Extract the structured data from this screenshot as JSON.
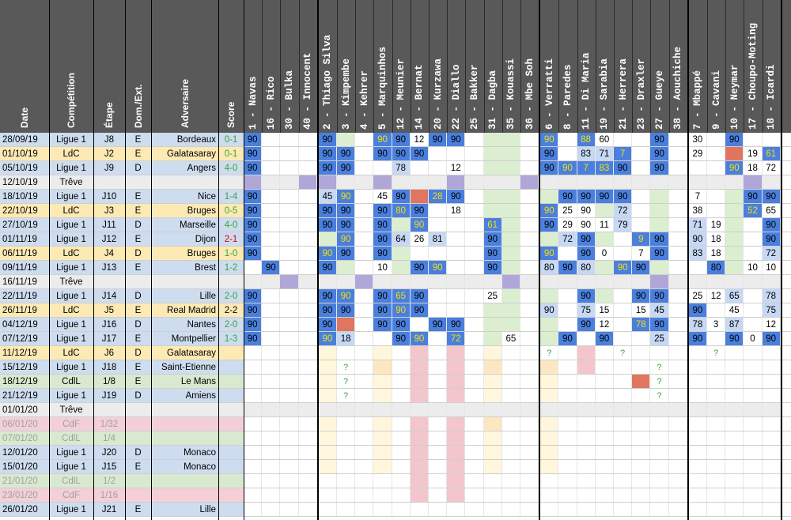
{
  "headers": {
    "date": "Date",
    "competition": "Compétition",
    "etape": "Étape",
    "domext": "Dom./Ext.",
    "adversaire": "Adversaire",
    "score": "Score"
  },
  "players": [
    "1 - Navas",
    "16 - Rico",
    "30 - Bulka",
    "40 - Innocent",
    "2 - Thiago Silva",
    "3 - Kimpembe",
    "4 - Kehrer",
    "5 - Marquinhos",
    "12 - Meunier",
    "14 - Bernat",
    "20 - Kurzawa",
    "22 - Diallo",
    "25 - Bakker",
    "31 - Dagba",
    "35 - Kouassi",
    "36 - Mbe Soh",
    "6 - Verratti",
    "8 - Paredes",
    "11 - Di Maria",
    "19 - Sarabia",
    "21 - Herrera",
    "23 - Draxler",
    "27 - Gueye",
    "38 - Aouchiche",
    "7 - Mbappé",
    "9 - Cavani",
    "10 - Neymar",
    "17 - Choupo-Moting",
    "18 - Icardi"
  ],
  "matches": [
    {
      "date": "28/09/19",
      "comp": "Ligue 1",
      "etape": "J8",
      "de": "E",
      "adv": "Bordeaux",
      "score": "0-1",
      "res": "w"
    },
    {
      "date": "01/10/19",
      "comp": "LdC",
      "etape": "J2",
      "de": "E",
      "adv": "Galatasaray",
      "score": "0-1",
      "res": "w"
    },
    {
      "date": "05/10/19",
      "comp": "Ligue 1",
      "etape": "J9",
      "de": "D",
      "adv": "Angers",
      "score": "4-0",
      "res": "w"
    },
    {
      "date": "12/10/19",
      "comp": "Trêve",
      "etape": "",
      "de": "",
      "adv": "",
      "score": "",
      "res": ""
    },
    {
      "date": "18/10/19",
      "comp": "Ligue 1",
      "etape": "J10",
      "de": "E",
      "adv": "Nice",
      "score": "1-4",
      "res": "w"
    },
    {
      "date": "22/10/19",
      "comp": "LdC",
      "etape": "J3",
      "de": "E",
      "adv": "Bruges",
      "score": "0-5",
      "res": "w"
    },
    {
      "date": "27/10/19",
      "comp": "Ligue 1",
      "etape": "J11",
      "de": "D",
      "adv": "Marseille",
      "score": "4-0",
      "res": "w"
    },
    {
      "date": "01/11/19",
      "comp": "Ligue 1",
      "etape": "J12",
      "de": "E",
      "adv": "Dijon",
      "score": "2-1",
      "res": "l"
    },
    {
      "date": "06/11/19",
      "comp": "LdC",
      "etape": "J4",
      "de": "D",
      "adv": "Bruges",
      "score": "1-0",
      "res": "w"
    },
    {
      "date": "09/11/19",
      "comp": "Ligue 1",
      "etape": "J13",
      "de": "E",
      "adv": "Brest",
      "score": "1-2",
      "res": "w"
    },
    {
      "date": "16/11/19",
      "comp": "Trêve",
      "etape": "",
      "de": "",
      "adv": "",
      "score": "",
      "res": ""
    },
    {
      "date": "22/11/19",
      "comp": "Ligue 1",
      "etape": "J14",
      "de": "D",
      "adv": "Lille",
      "score": "2-0",
      "res": "w"
    },
    {
      "date": "26/11/19",
      "comp": "LdC",
      "etape": "J5",
      "de": "E",
      "adv": "Real Madrid",
      "score": "2-2",
      "res": "d"
    },
    {
      "date": "04/12/19",
      "comp": "Ligue 1",
      "etape": "J16",
      "de": "D",
      "adv": "Nantes",
      "score": "2-0",
      "res": "w"
    },
    {
      "date": "07/12/19",
      "comp": "Ligue 1",
      "etape": "J17",
      "de": "E",
      "adv": "Montpellier",
      "score": "1-3",
      "res": "w"
    },
    {
      "date": "11/12/19",
      "comp": "LdC",
      "etape": "J6",
      "de": "D",
      "adv": "Galatasaray",
      "score": "",
      "res": ""
    },
    {
      "date": "15/12/19",
      "comp": "Ligue 1",
      "etape": "J18",
      "de": "E",
      "adv": "Saint-Etienne",
      "score": "",
      "res": ""
    },
    {
      "date": "18/12/19",
      "comp": "CdlL",
      "etape": "1/8",
      "de": "E",
      "adv": "Le Mans",
      "score": "",
      "res": ""
    },
    {
      "date": "21/12/19",
      "comp": "Ligue 1",
      "etape": "J19",
      "de": "D",
      "adv": "Amiens",
      "score": "",
      "res": ""
    },
    {
      "date": "01/01/20",
      "comp": "Trêve",
      "etape": "",
      "de": "",
      "adv": "",
      "score": "",
      "res": ""
    },
    {
      "date": "06/01/20",
      "comp": "CdF",
      "etape": "1/32",
      "de": "",
      "adv": "",
      "score": "",
      "res": "",
      "dim": true
    },
    {
      "date": "07/01/20",
      "comp": "CdlL",
      "etape": "1/4",
      "de": "",
      "adv": "",
      "score": "",
      "res": "",
      "dim": true
    },
    {
      "date": "12/01/20",
      "comp": "Ligue 1",
      "etape": "J20",
      "de": "D",
      "adv": "Monaco",
      "score": "",
      "res": ""
    },
    {
      "date": "15/01/20",
      "comp": "Ligue 1",
      "etape": "J15",
      "de": "E",
      "adv": "Monaco",
      "score": "",
      "res": ""
    },
    {
      "date": "21/01/20",
      "comp": "CdlL",
      "etape": "1/2",
      "de": "",
      "adv": "",
      "score": "",
      "res": "",
      "dim": true
    },
    {
      "date": "23/01/20",
      "comp": "CdF",
      "etape": "1/16",
      "de": "",
      "adv": "",
      "score": "",
      "res": "",
      "dim": true
    },
    {
      "date": "26/01/20",
      "comp": "Ligue 1",
      "etape": "J21",
      "de": "E",
      "adv": "Lille",
      "score": "",
      "res": ""
    }
  ],
  "cells": [
    [
      "B90",
      "",
      "",
      "",
      "B90",
      "",
      "",
      "Y90",
      "B90",
      "W12",
      "B90",
      "B90",
      "",
      "",
      "",
      "",
      "Y90",
      "",
      "Y88",
      "W60",
      "",
      "",
      "B90",
      "",
      "W30",
      "",
      "B90",
      "",
      ""
    ],
    [
      "B90",
      "",
      "",
      "",
      "B90",
      "B90",
      "",
      "B90",
      "B90",
      "B90",
      "",
      "",
      "",
      "",
      "",
      "",
      "B90",
      "",
      "L83",
      "L71",
      "Y7",
      "",
      "B90",
      "",
      "W29",
      "",
      "R",
      "W19",
      "Y61"
    ],
    [
      "B90",
      "",
      "",
      "",
      "B90",
      "B90",
      "",
      "",
      "L78",
      "",
      "",
      "W12",
      "",
      "",
      "",
      "",
      "B90",
      "Y90",
      "Y7",
      "Y83",
      "B90",
      "",
      "B90",
      "",
      "",
      "",
      "Y90",
      "W18",
      "W72"
    ],
    [
      "P",
      "",
      "",
      "P",
      "P",
      "",
      "",
      "P",
      "",
      "",
      "",
      "P",
      "",
      "",
      "",
      "P",
      "",
      "",
      "",
      "",
      "",
      "",
      "",
      "",
      "",
      "",
      "",
      "P",
      ""
    ],
    [
      "B90",
      "",
      "",
      "",
      "L45",
      "Y90",
      "",
      "W45",
      "B90",
      "R",
      "Y28",
      "B90",
      "",
      "",
      "",
      "",
      "",
      "B90",
      "B90",
      "B90",
      "B90",
      "",
      "",
      "",
      "W7",
      "",
      "",
      "B90",
      "B90"
    ],
    [
      "B90",
      "",
      "",
      "",
      "B90",
      "B90",
      "",
      "B90",
      "Y80",
      "B90",
      "",
      "W18",
      "",
      "",
      "",
      "",
      "Y90",
      "W25",
      "W90",
      "",
      "L72",
      "",
      "",
      "",
      "W38",
      "",
      "",
      "Y52",
      "W65"
    ],
    [
      "B90",
      "",
      "",
      "",
      "B90",
      "B90",
      "",
      "B90",
      "",
      "Y90",
      "",
      "",
      "",
      "Y61",
      "",
      "",
      "B90",
      "W29",
      "W90",
      "W11",
      "L79",
      "",
      "",
      "",
      "L71",
      "W19",
      "",
      "",
      "B90"
    ],
    [
      "B90",
      "",
      "",
      "",
      "",
      "Y90",
      "",
      "B90",
      "L64",
      "W26",
      "L81",
      "",
      "",
      "B90",
      "",
      "",
      "",
      "L72",
      "B90",
      "",
      "",
      "Y9",
      "B90",
      "",
      "L90",
      "W18",
      "",
      "",
      "B90"
    ],
    [
      "B90",
      "",
      "",
      "",
      "Y90",
      "B90",
      "",
      "B90",
      "",
      "",
      "",
      "",
      "",
      "B90",
      "",
      "",
      "Y90",
      "",
      "B90",
      "W0",
      "",
      "W7",
      "B90",
      "",
      "L83",
      "W18",
      "",
      "",
      "L72"
    ],
    [
      "",
      "B90",
      "",
      "",
      "B90",
      "",
      "",
      "W10",
      "",
      "B90",
      "Y90",
      "",
      "",
      "B90",
      "",
      "",
      "L80",
      "B90",
      "L80",
      "",
      "Y90",
      "B90",
      "",
      "",
      "",
      "B80",
      "",
      "W10",
      "W10"
    ],
    [
      "",
      "",
      "P",
      "",
      "",
      "",
      "P",
      "",
      "",
      "",
      "",
      "",
      "",
      "",
      "P",
      "",
      "",
      "",
      "",
      "",
      "",
      "",
      "P",
      "",
      "",
      "",
      "",
      "",
      ""
    ],
    [
      "B90",
      "",
      "",
      "",
      "B90",
      "Y90",
      "",
      "B90",
      "Y65",
      "B90",
      "",
      "",
      "",
      "W25",
      "",
      "",
      "",
      "",
      "B90",
      "",
      "",
      "B90",
      "B90",
      "",
      "W25",
      "W12",
      "L65",
      "",
      "L78"
    ],
    [
      "B90",
      "",
      "",
      "",
      "B90",
      "B90",
      "",
      "B90",
      "Y90",
      "B90",
      "",
      "",
      "",
      "",
      "",
      "",
      "L90",
      "",
      "L75",
      "W15",
      "",
      "W15",
      "L45",
      "",
      "B90",
      "",
      "W45",
      "",
      "L75"
    ],
    [
      "B90",
      "",
      "",
      "",
      "B90",
      "R",
      "",
      "B90",
      "B90",
      "",
      "B90",
      "B90",
      "",
      "",
      "",
      "",
      "",
      "",
      "B90",
      "W12",
      "",
      "Y78",
      "B90",
      "",
      "L78",
      "W3",
      "L87",
      "",
      "W12"
    ],
    [
      "B90",
      "",
      "",
      "",
      "Y90",
      "L18",
      "",
      "",
      "B90",
      "Y90",
      "",
      "Y72",
      "",
      "",
      "W65",
      "",
      "",
      "B90",
      "",
      "B90",
      "",
      "",
      "L25",
      "",
      "B90",
      "",
      "B90",
      "W0",
      "B90"
    ],
    [
      "",
      "",
      "",
      "",
      "",
      "",
      "",
      "",
      "",
      "S",
      "",
      "S",
      "",
      "",
      "",
      "",
      "Q",
      "",
      "S",
      "",
      "Q",
      "",
      "",
      "",
      "",
      "Q",
      "",
      "",
      ""
    ],
    [
      "",
      "",
      "",
      "",
      "",
      "Q",
      "",
      "O",
      "",
      "S",
      "",
      "S",
      "",
      "O",
      "",
      "",
      "O",
      "",
      "S",
      "",
      "",
      "",
      "Q",
      "",
      "",
      "",
      "",
      "",
      ""
    ],
    [
      "",
      "",
      "",
      "",
      "",
      "Q",
      "",
      "",
      "",
      "S",
      "",
      "S",
      "",
      "",
      "",
      "",
      "",
      "",
      "",
      "",
      "",
      "R",
      "Q",
      "",
      "",
      "",
      "",
      "",
      ""
    ],
    [
      "",
      "",
      "",
      "",
      "",
      "Q",
      "",
      "",
      "",
      "S",
      "",
      "S",
      "",
      "",
      "",
      "",
      "",
      "",
      "",
      "",
      "",
      "",
      "Q",
      "",
      "",
      "",
      "",
      "",
      ""
    ],
    [
      "",
      "",
      "",
      "",
      "",
      "",
      "",
      "",
      "",
      "",
      "",
      "",
      "",
      "",
      "",
      "",
      "",
      "",
      "",
      "",
      "",
      "",
      "",
      "",
      "",
      "",
      "",
      "",
      ""
    ],
    [
      "",
      "",
      "",
      "",
      "",
      "",
      "",
      "",
      "",
      "S",
      "",
      "S",
      "",
      "O",
      "",
      "",
      "",
      "",
      "",
      "",
      "",
      "",
      "",
      "",
      "",
      "",
      "",
      "",
      ""
    ],
    [
      "",
      "",
      "",
      "",
      "",
      "",
      "",
      "",
      "",
      "S",
      "",
      "S",
      "",
      "",
      "",
      "",
      "",
      "",
      "",
      "",
      "",
      "",
      "",
      "",
      "",
      "",
      "",
      "",
      ""
    ],
    [
      "",
      "",
      "",
      "",
      "",
      "",
      "",
      "",
      "",
      "S",
      "",
      "S",
      "",
      "",
      "",
      "",
      "",
      "",
      "",
      "",
      "",
      "",
      "",
      "",
      "",
      "",
      "",
      "",
      ""
    ],
    [
      "",
      "",
      "",
      "",
      "",
      "",
      "",
      "",
      "",
      "S",
      "",
      "S",
      "",
      "",
      "",
      "",
      "",
      "",
      "",
      "",
      "",
      "",
      "",
      "",
      "",
      "",
      "",
      "",
      ""
    ],
    [
      "",
      "",
      "",
      "",
      "",
      "",
      "",
      "",
      "",
      "S",
      "",
      "S",
      "",
      "",
      "",
      "",
      "",
      "",
      "",
      "",
      "",
      "",
      "",
      "",
      "",
      "",
      "",
      "",
      ""
    ],
    [
      "",
      "",
      "",
      "",
      "",
      "",
      "",
      "",
      "",
      "S",
      "",
      "S",
      "",
      "",
      "",
      "",
      "",
      "",
      "",
      "",
      "",
      "",
      "",
      "",
      "",
      "",
      "",
      "",
      ""
    ],
    [
      "",
      "",
      "",
      "",
      "",
      "",
      "",
      "",
      "",
      "",
      "",
      "",
      "",
      "",
      "",
      "",
      "",
      "",
      "",
      "",
      "",
      "",
      "",
      "",
      "",
      "",
      "",
      "",
      ""
    ]
  ],
  "colors": {
    "header": "#595959",
    "ligue1": "#cddcee",
    "ldc": "#fde9b4",
    "cdl": "#d8e9cf",
    "cdf": "#f4cfd8",
    "treve": "#ececec",
    "dark_blue": "#4a7fdd",
    "light_blue": "#c6d8f4",
    "green_tint": "#dbeed0",
    "purple": "#b0a6d8",
    "red": "#e07560",
    "pink": "#f3c6cc",
    "orange": "#fde7c2"
  }
}
